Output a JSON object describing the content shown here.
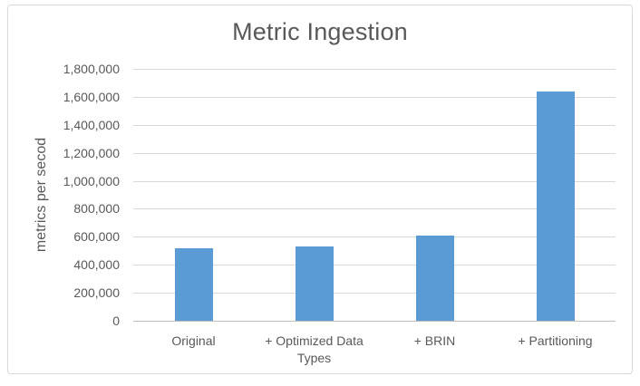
{
  "chart_data": {
    "type": "bar",
    "title": "Metric Ingestion",
    "xlabel": "",
    "ylabel": "metrics per secod",
    "categories": [
      "Original",
      "+ Optimized Data Types",
      "+ BRIN",
      "+ Partitioning"
    ],
    "values": [
      520000,
      530000,
      610000,
      1640000
    ],
    "ylim": [
      0,
      1800000
    ],
    "ytick_step": 200000,
    "ytick_labels": [
      "0",
      "200,000",
      "400,000",
      "600,000",
      "800,000",
      "1,000,000",
      "1,200,000",
      "1,400,000",
      "1,600,000",
      "1,800,000"
    ],
    "grid": true,
    "legend": false,
    "colors": {
      "bar": "#5b9bd5",
      "gridline": "#d9d9d9",
      "axis_line": "#bfbfbf",
      "text": "#595959",
      "frame_border": "#d9d9d9"
    }
  }
}
